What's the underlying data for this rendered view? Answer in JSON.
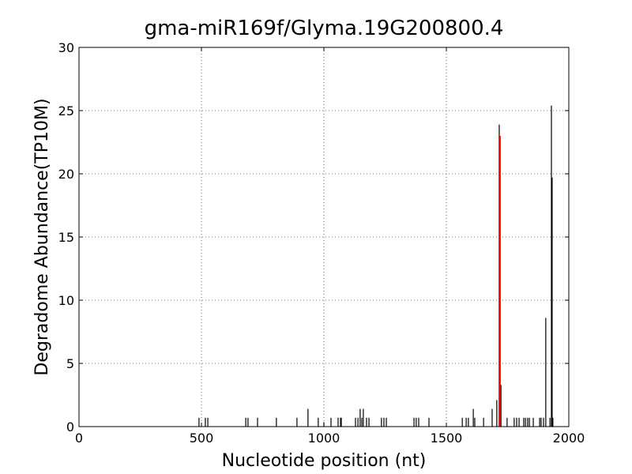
{
  "chart_data": {
    "type": "vlines",
    "title": "gma-miR169f/Glyma.19G200800.4",
    "xlabel": "Nucleotide position (nt)",
    "ylabel": "Degradome Abundance(TP10M)",
    "xlim": [
      0,
      2000
    ],
    "ylim": [
      0,
      30
    ],
    "xticks": [
      0,
      500,
      1000,
      1500,
      2000
    ],
    "yticks": [
      0,
      5,
      10,
      15,
      20,
      25,
      30
    ],
    "grid": true,
    "series": [
      {
        "color": "#000000",
        "x": [
          490,
          516,
          526,
          681,
          690,
          729,
          806,
          890,
          935,
          977,
          1000,
          1029,
          1058,
          1068,
          1071,
          1129,
          1139,
          1148,
          1155,
          1161,
          1174,
          1184,
          1235,
          1245,
          1255,
          1368,
          1377,
          1387,
          1429,
          1565,
          1581,
          1590,
          1610,
          1616,
          1652,
          1687,
          1706,
          1716,
          1723,
          1748,
          1777,
          1787,
          1797,
          1816,
          1823,
          1832,
          1839,
          1855,
          1881,
          1887,
          1897,
          1906,
          1923,
          1929,
          1932,
          1935
        ],
        "values": [
          0.7,
          0.7,
          0.7,
          0.7,
          0.7,
          0.7,
          0.7,
          0.7,
          1.4,
          0.7,
          0.35,
          0.7,
          0.7,
          0.7,
          0.7,
          0.7,
          0.7,
          1.4,
          0.7,
          1.4,
          0.7,
          0.7,
          0.7,
          0.7,
          0.7,
          0.7,
          0.7,
          0.7,
          0.7,
          0.7,
          0.7,
          0.7,
          1.4,
          0.7,
          0.7,
          1.4,
          2.1,
          23.9,
          3.3,
          0.7,
          0.7,
          0.7,
          0.7,
          0.7,
          0.7,
          0.7,
          0.7,
          0.7,
          0.7,
          0.7,
          0.7,
          8.6,
          0.7,
          25.4,
          19.7,
          0.7
        ]
      },
      {
        "color": "#ff0000",
        "x": [
          1719
        ],
        "values": [
          23
        ]
      }
    ]
  }
}
